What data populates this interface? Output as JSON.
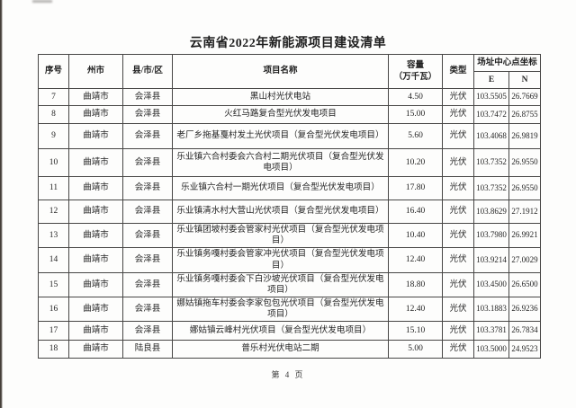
{
  "page": {
    "title": "云南省2022年新能源项目建设清单",
    "footer": "第 4 页"
  },
  "table": {
    "headers": {
      "index": "序号",
      "city": "州市",
      "county": "县/市/区",
      "project": "项目名称",
      "capacity_line1": "容量",
      "capacity_line2": "（万千瓦）",
      "type": "类型",
      "coords": "场址中心点坐标",
      "e": "E",
      "n": "N"
    },
    "rows": [
      {
        "no": "7",
        "city": "曲靖市",
        "county": "会泽县",
        "project": "黑山村光伏电站",
        "capacity": "4.50",
        "type": "光伏",
        "e": "103.5505",
        "n": "26.7669"
      },
      {
        "no": "8",
        "city": "曲靖市",
        "county": "会泽县",
        "project": "火红马路复合型光伏发电项目",
        "capacity": "15.00",
        "type": "光伏",
        "e": "103.7472",
        "n": "26.8755"
      },
      {
        "no": "9",
        "city": "曲靖市",
        "county": "会泽县",
        "project": "老厂乡拖基戛村发土光伏项目（复合型光伏发电项目）",
        "capacity": "5.60",
        "type": "光伏",
        "e": "103.4068",
        "n": "26.9819"
      },
      {
        "no": "10",
        "city": "曲靖市",
        "county": "会泽县",
        "project": "乐业镇六合村委会六合村二期光伏项目（复合型光伏发电项目）",
        "capacity": "10.20",
        "type": "光伏",
        "e": "103.7352",
        "n": "26.9550"
      },
      {
        "no": "11",
        "city": "曲靖市",
        "county": "会泽县",
        "project": "乐业镇六合村一期光伏项目（复合型光伏发电项目）",
        "capacity": "17.80",
        "type": "光伏",
        "e": "103.7352",
        "n": "26.9550"
      },
      {
        "no": "12",
        "city": "曲靖市",
        "county": "会泽县",
        "project": "乐业镇清水村大营山光伏项目（复合型光伏发电项目）",
        "capacity": "16.40",
        "type": "光伏",
        "e": "103.8629",
        "n": "27.1912"
      },
      {
        "no": "13",
        "city": "曲靖市",
        "county": "会泽县",
        "project": "乐业镇团坡村委会管家村光伏项目（复合型光伏发电项目）",
        "capacity": "10.40",
        "type": "光伏",
        "e": "103.7980",
        "n": "26.9921"
      },
      {
        "no": "14",
        "city": "曲靖市",
        "county": "会泽县",
        "project": "乐业镇务嘎村委会管家冲光伏项目（复合型光伏发电项目）",
        "capacity": "12.40",
        "type": "光伏",
        "e": "103.9214",
        "n": "27.0029"
      },
      {
        "no": "15",
        "city": "曲靖市",
        "county": "会泽县",
        "project": "乐业镇务嘎村委会下白沙坡光伏项目（复合型光伏发电项目）",
        "capacity": "18.80",
        "type": "光伏",
        "e": "103.4500",
        "n": "26.6500"
      },
      {
        "no": "16",
        "city": "曲靖市",
        "county": "会泽县",
        "project": "娜姑镇拖车村委会李家包包光伏项目（复合型光伏发电项目）",
        "capacity": "12.40",
        "type": "光伏",
        "e": "103.1883",
        "n": "26.9236"
      },
      {
        "no": "17",
        "city": "曲靖市",
        "county": "会泽县",
        "project": "娜姑镇云峰村光伏项目（复合型光伏发电项目）",
        "capacity": "15.10",
        "type": "光伏",
        "e": "103.3781",
        "n": "26.7834"
      },
      {
        "no": "18",
        "city": "曲靖市",
        "county": "陆良县",
        "project": "普乐村光伏电站二期",
        "capacity": "5.00",
        "type": "光伏",
        "e": "103.5000",
        "n": "24.9523"
      }
    ]
  }
}
